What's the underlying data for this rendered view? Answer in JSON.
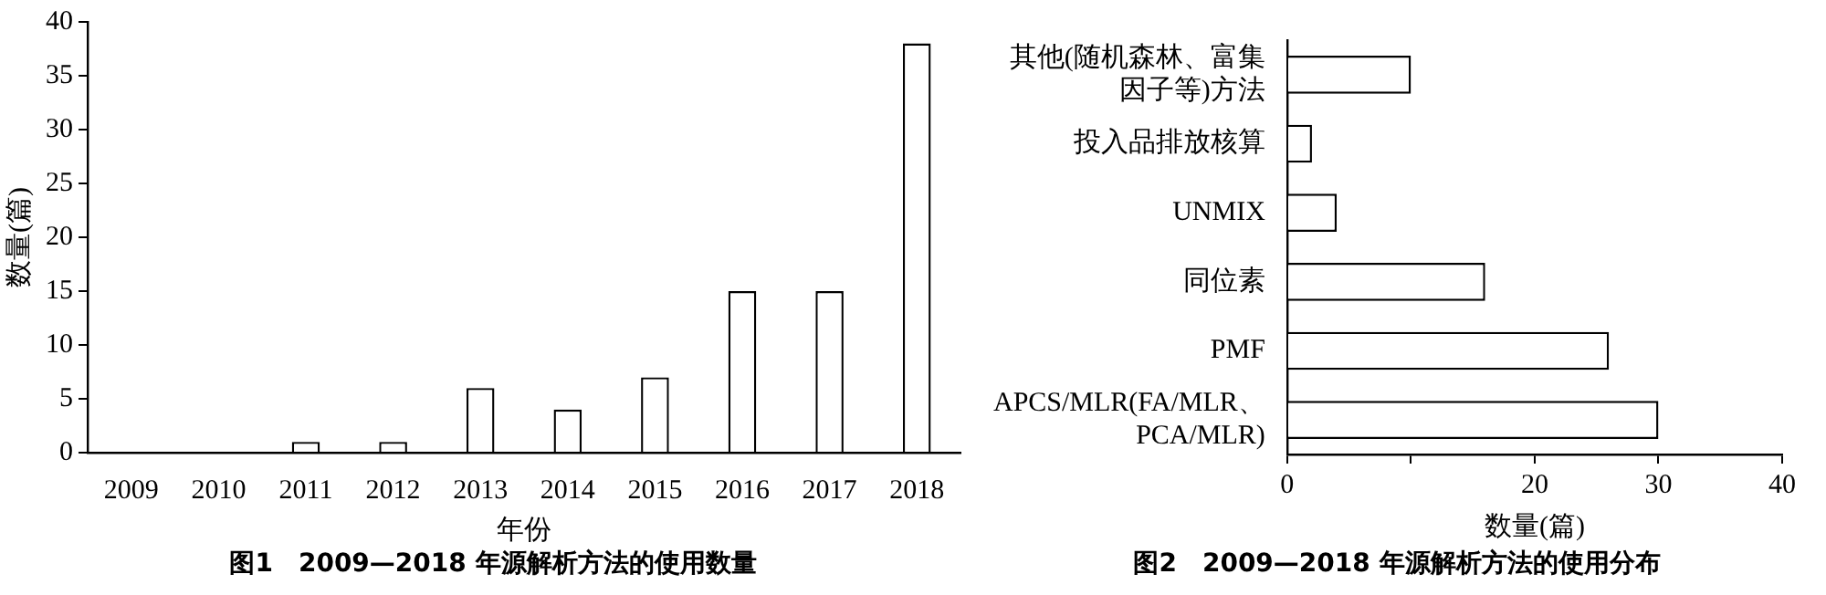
{
  "chart_data": [
    {
      "type": "bar",
      "categories": [
        "2009",
        "2010",
        "2011",
        "2012",
        "2013",
        "2014",
        "2015",
        "2016",
        "2017",
        "2018"
      ],
      "values": [
        0,
        0,
        1,
        1,
        6,
        4,
        7,
        15,
        15,
        38
      ],
      "color": "#ffffff",
      "xlabel": "年份",
      "ylabel": "数量(篇)",
      "ylim": [
        0,
        40
      ],
      "yticks": [
        0,
        5,
        10,
        15,
        20,
        25,
        30,
        35,
        40
      ],
      "grid": false,
      "legend": false,
      "annotations": [
        "图1　2009—2018 年源解析方法的使用数量"
      ]
    },
    {
      "type": "bar",
      "orientation": "horizontal",
      "categories": [
        "其他(随机森林、富集因子等)方法",
        "投入品排放核算",
        "UNMIX",
        "同位素",
        "PMF",
        "APCS/MLR(FA/MLR、PCA/MLR)"
      ],
      "values": [
        10,
        2,
        4,
        16,
        26,
        30
      ],
      "color": "#ffffff",
      "xlabel": "数量(篇)",
      "xlim": [
        0,
        40
      ],
      "xticks": [
        0,
        {
          "value": 10,
          "label": null
        },
        20,
        30,
        40
      ],
      "grid": false,
      "legend": false,
      "annotations": [
        "图2　2009—2018 年源解析方法的使用分布"
      ]
    }
  ]
}
